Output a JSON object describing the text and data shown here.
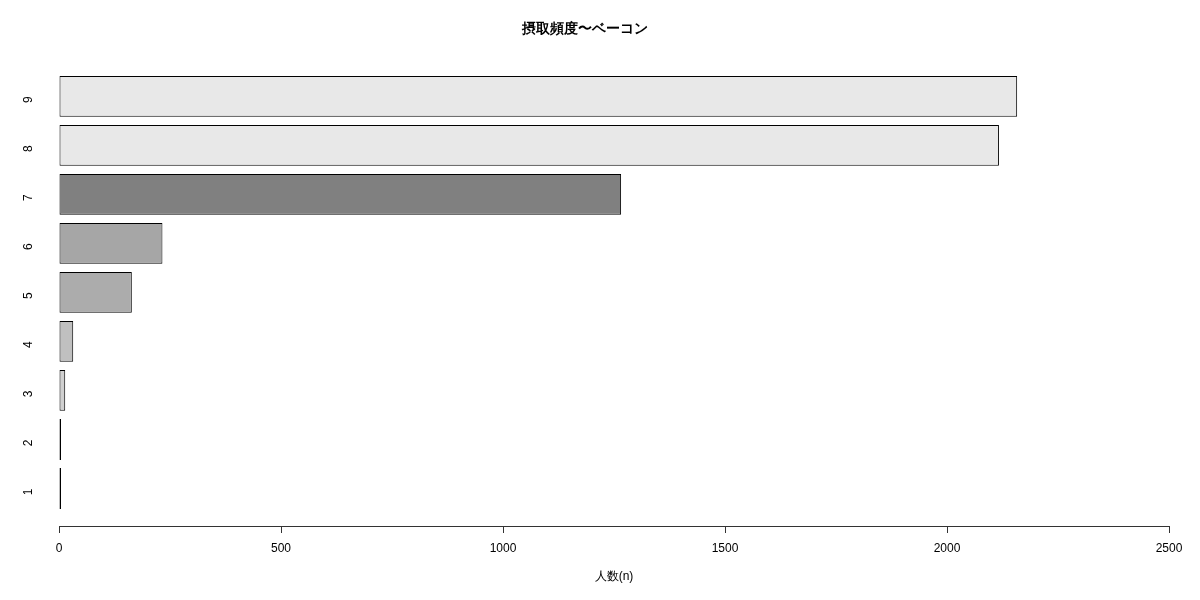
{
  "chart_data": {
    "type": "bar",
    "orientation": "horizontal",
    "title": "摂取頻度〜ベーコン",
    "xlabel": "人数(n)",
    "categories": [
      "9",
      "8",
      "7",
      "6",
      "5",
      "4",
      "3",
      "2",
      "1"
    ],
    "values": [
      2158,
      2117,
      1266,
      233,
      164,
      32,
      14,
      1,
      1
    ],
    "colors": [
      "#e8e8e8",
      "#e8e8e8",
      "#808080",
      "#a6a6a6",
      "#acacac",
      "#c0c0c0",
      "#d0d0d0",
      "#000000",
      "#000000"
    ],
    "xlim": [
      0,
      2500
    ],
    "xticks": [
      0,
      500,
      1000,
      1500,
      2000,
      2500
    ],
    "grid": false,
    "legend": false
  }
}
